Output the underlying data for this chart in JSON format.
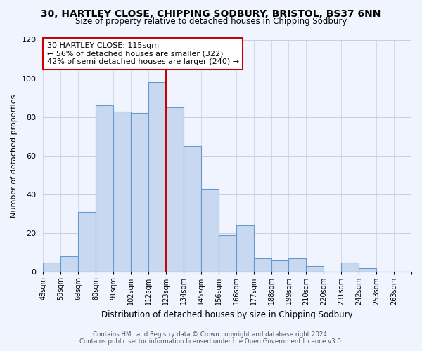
{
  "title_line1": "30, HARTLEY CLOSE, CHIPPING SODBURY, BRISTOL, BS37 6NN",
  "title_line2": "Size of property relative to detached houses in Chipping Sodbury",
  "xlabel": "Distribution of detached houses by size in Chipping Sodbury",
  "ylabel": "Number of detached properties",
  "bin_labels": [
    "48sqm",
    "59sqm",
    "69sqm",
    "80sqm",
    "91sqm",
    "102sqm",
    "112sqm",
    "123sqm",
    "134sqm",
    "145sqm",
    "156sqm",
    "166sqm",
    "177sqm",
    "188sqm",
    "199sqm",
    "210sqm",
    "220sqm",
    "231sqm",
    "242sqm",
    "253sqm",
    "263sqm"
  ],
  "bar_heights": [
    5,
    8,
    31,
    86,
    83,
    82,
    98,
    85,
    65,
    43,
    19,
    24,
    7,
    6,
    7,
    3,
    0,
    5,
    2,
    0,
    0
  ],
  "bar_color": "#c8d8f0",
  "bar_edge_color": "#6699cc",
  "vline_x": 7,
  "vline_color": "#cc0000",
  "annotation_title": "30 HARTLEY CLOSE: 115sqm",
  "annotation_line2": "← 56% of detached houses are smaller (322)",
  "annotation_line3": "42% of semi-detached houses are larger (240) →",
  "annotation_box_color": "#ffffff",
  "annotation_box_edge": "#cc0000",
  "ylim": [
    0,
    120
  ],
  "yticks": [
    0,
    20,
    40,
    60,
    80,
    100,
    120
  ],
  "footer_line1": "Contains HM Land Registry data © Crown copyright and database right 2024.",
  "footer_line2": "Contains public sector information licensed under the Open Government Licence v3.0.",
  "background_color": "#f0f4ff",
  "grid_color": "#ccccdd"
}
